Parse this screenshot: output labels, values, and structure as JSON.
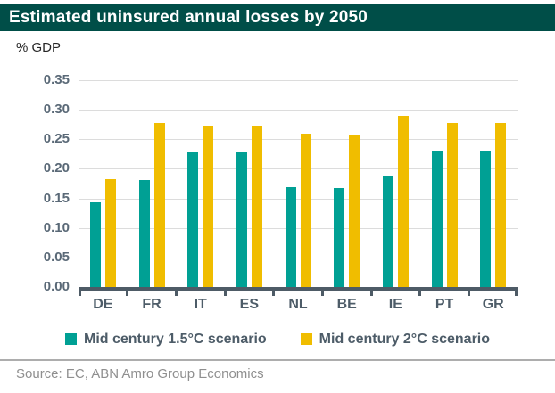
{
  "header": {
    "title": "Estimated uninsured annual losses by 2050"
  },
  "chart_data": {
    "type": "bar",
    "title": "Estimated uninsured annual losses by 2050",
    "ylabel": "% GDP",
    "xlabel": "",
    "categories": [
      "DE",
      "FR",
      "IT",
      "ES",
      "NL",
      "BE",
      "IE",
      "PT",
      "GR"
    ],
    "series": [
      {
        "name": "Mid century 1.5°C scenario",
        "color": "#00A094",
        "values": [
          0.143,
          0.181,
          0.228,
          0.228,
          0.169,
          0.168,
          0.188,
          0.23,
          0.231
        ]
      },
      {
        "name": "Mid century 2°C scenario",
        "color": "#F0BD00",
        "values": [
          0.183,
          0.277,
          0.273,
          0.273,
          0.26,
          0.258,
          0.289,
          0.277,
          0.278
        ]
      }
    ],
    "ylim": [
      0,
      0.35
    ],
    "ytick_step": 0.05,
    "ytick_labels": [
      "0.35",
      "0.30",
      "0.25",
      "0.20",
      "0.15",
      "0.10",
      "0.05",
      "0.00"
    ],
    "grid": true,
    "legend_position": "bottom"
  },
  "footer": {
    "source": "Source: EC, ABN Amro Group Economics"
  },
  "colors": {
    "title_bar_bg": "#004E48",
    "title_text": "#ffffff",
    "series1": "#00A094",
    "series2": "#F0BD00",
    "axis": "#4E5B66",
    "gridline": "#DCDCDC",
    "tick_label": "#5A6977",
    "footer_text": "#8F8F8F"
  }
}
